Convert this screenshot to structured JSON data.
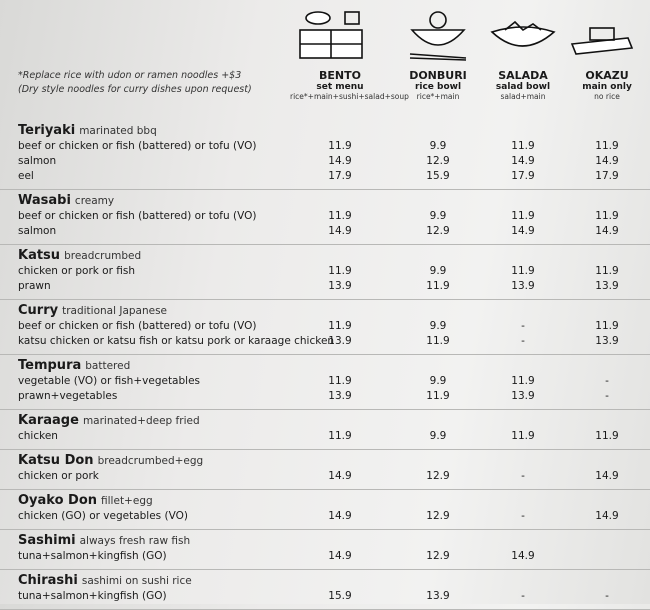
{
  "notes": [
    "*Replace rice with udon or ramen noodles +$3",
    "(Dry style noodles for curry dishes upon request)"
  ],
  "columns": [
    {
      "name": "BENTO",
      "subtitle": "set menu",
      "contents": "rice*+main+sushi+salad+soup"
    },
    {
      "name": "DONBURI",
      "subtitle": "rice bowl",
      "contents": "rice*+main"
    },
    {
      "name": "SALADA",
      "subtitle": "salad bowl",
      "contents": "salad+main"
    },
    {
      "name": "OKAZU",
      "subtitle": "main only",
      "contents": "no rice"
    }
  ],
  "sections": [
    {
      "name": "Teriyaki",
      "description": "marinated bbq",
      "items": [
        {
          "text": "beef or chicken or fish (battered) or tofu (VO)",
          "prices": [
            "11.9",
            "9.9",
            "11.9",
            "11.9"
          ]
        },
        {
          "text": "salmon",
          "prices": [
            "14.9",
            "12.9",
            "14.9",
            "14.9"
          ]
        },
        {
          "text": "eel",
          "prices": [
            "17.9",
            "15.9",
            "17.9",
            "17.9"
          ]
        }
      ]
    },
    {
      "name": "Wasabi",
      "description": "creamy",
      "items": [
        {
          "text": "beef or chicken or fish (battered) or tofu (VO)",
          "prices": [
            "11.9",
            "9.9",
            "11.9",
            "11.9"
          ]
        },
        {
          "text": "salmon",
          "prices": [
            "14.9",
            "12.9",
            "14.9",
            "14.9"
          ]
        }
      ]
    },
    {
      "name": "Katsu",
      "description": "breadcrumbed",
      "items": [
        {
          "text": "chicken or pork or fish",
          "prices": [
            "11.9",
            "9.9",
            "11.9",
            "11.9"
          ]
        },
        {
          "text": "prawn",
          "prices": [
            "13.9",
            "11.9",
            "13.9",
            "13.9"
          ]
        }
      ]
    },
    {
      "name": "Curry",
      "description": "traditional Japanese",
      "items": [
        {
          "text": "beef or chicken or fish (battered) or tofu (VO)",
          "prices": [
            "11.9",
            "9.9",
            "-",
            "11.9"
          ]
        },
        {
          "text": "katsu chicken or katsu fish or katsu pork or karaage chicken",
          "prices": [
            "13.9",
            "11.9",
            "-",
            "13.9"
          ]
        }
      ]
    },
    {
      "name": "Tempura",
      "description": "battered",
      "items": [
        {
          "text": "vegetable (VO) or fish+vegetables",
          "prices": [
            "11.9",
            "9.9",
            "11.9",
            "-"
          ]
        },
        {
          "text": "prawn+vegetables",
          "prices": [
            "13.9",
            "11.9",
            "13.9",
            "-"
          ]
        }
      ]
    },
    {
      "name": "Karaage",
      "description": "marinated+deep fried",
      "items": [
        {
          "text": "chicken",
          "prices": [
            "11.9",
            "9.9",
            "11.9",
            "11.9"
          ]
        }
      ]
    },
    {
      "name": "Katsu Don",
      "description": "breadcrumbed+egg",
      "items": [
        {
          "text": "chicken or pork",
          "prices": [
            "14.9",
            "12.9",
            "-",
            "14.9"
          ]
        }
      ]
    },
    {
      "name": "Oyako Don",
      "description": "fillet+egg",
      "items": [
        {
          "text": "chicken (GO) or vegetables (VO)",
          "prices": [
            "14.9",
            "12.9",
            "-",
            "14.9"
          ]
        }
      ]
    },
    {
      "name": "Sashimi",
      "description": "always fresh raw fish",
      "items": [
        {
          "text": "tuna+salmon+kingfish (GO)",
          "prices": [
            "14.9",
            "12.9",
            "14.9",
            null
          ]
        }
      ]
    },
    {
      "name": "Chirashi",
      "description": "sashimi on sushi rice",
      "items": [
        {
          "text": "tuna+salmon+kingfish (GO)",
          "prices": [
            "15.9",
            "13.9",
            "-",
            "-"
          ]
        }
      ]
    }
  ]
}
